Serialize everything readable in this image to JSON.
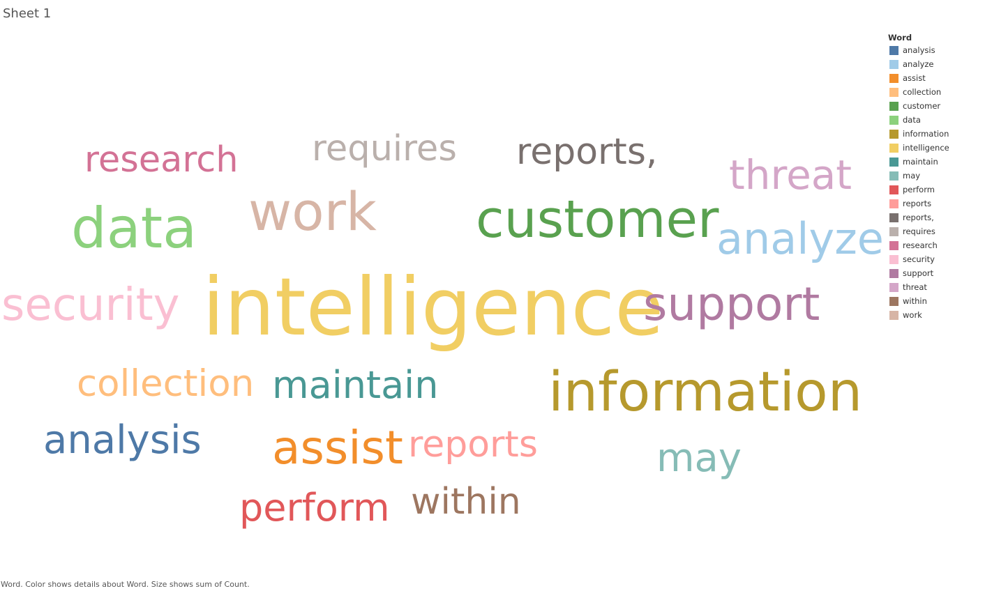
{
  "sheet": {
    "title": "Sheet 1",
    "caption": "Word.  Color shows details about Word.  Size shows sum of Count."
  },
  "chart_data": {
    "type": "word_cloud",
    "encoding": {
      "color": "Word",
      "size": "sum of Count"
    },
    "legend": {
      "title": "Word",
      "placement": "right",
      "items": [
        {
          "label": "analysis",
          "color": "#4e79a7"
        },
        {
          "label": "analyze",
          "color": "#a0cbe8"
        },
        {
          "label": "assist",
          "color": "#f28e2b"
        },
        {
          "label": "collection",
          "color": "#ffbe7d"
        },
        {
          "label": "customer",
          "color": "#59a14f"
        },
        {
          "label": "data",
          "color": "#8cd17d"
        },
        {
          "label": "information",
          "color": "#b6992d"
        },
        {
          "label": "intelligence",
          "color": "#f1ce63"
        },
        {
          "label": "maintain",
          "color": "#499894"
        },
        {
          "label": "may",
          "color": "#86bcb6"
        },
        {
          "label": "perform",
          "color": "#e15759"
        },
        {
          "label": "reports",
          "color": "#ff9d9a"
        },
        {
          "label": "reports,",
          "color": "#79706e"
        },
        {
          "label": "requires",
          "color": "#bab0ac"
        },
        {
          "label": "research",
          "color": "#d37295"
        },
        {
          "label": "security",
          "color": "#fabfd2"
        },
        {
          "label": "support",
          "color": "#b07aa1"
        },
        {
          "label": "threat",
          "color": "#d4a6c8"
        },
        {
          "label": "within",
          "color": "#9d7660"
        },
        {
          "label": "work",
          "color": "#d7b5a6"
        }
      ]
    },
    "words": [
      {
        "word": "intelligence",
        "color": "#f1ce63",
        "size_rank": 1
      },
      {
        "word": "information",
        "color": "#b6992d",
        "size_rank": 2
      },
      {
        "word": "customer",
        "color": "#59a14f",
        "size_rank": 3
      },
      {
        "word": "data",
        "color": "#8cd17d",
        "size_rank": 3
      },
      {
        "word": "work",
        "color": "#d7b5a6",
        "size_rank": 3
      },
      {
        "word": "support",
        "color": "#b07aa1",
        "size_rank": 4
      },
      {
        "word": "security",
        "color": "#fabfd2",
        "size_rank": 4
      },
      {
        "word": "analyze",
        "color": "#a0cbe8",
        "size_rank": 5
      },
      {
        "word": "assist",
        "color": "#f28e2b",
        "size_rank": 5
      },
      {
        "word": "analysis",
        "color": "#4e79a7",
        "size_rank": 6
      },
      {
        "word": "maintain",
        "color": "#499894",
        "size_rank": 6
      },
      {
        "word": "threat",
        "color": "#d4a6c8",
        "size_rank": 6
      },
      {
        "word": "collection",
        "color": "#ffbe7d",
        "size_rank": 6
      },
      {
        "word": "perform",
        "color": "#e15759",
        "size_rank": 6
      },
      {
        "word": "may",
        "color": "#86bcb6",
        "size_rank": 6
      },
      {
        "word": "reports",
        "color": "#ff9d9a",
        "size_rank": 6
      },
      {
        "word": "research",
        "color": "#d37295",
        "size_rank": 7
      },
      {
        "word": "reports,",
        "color": "#79706e",
        "size_rank": 7
      },
      {
        "word": "requires",
        "color": "#bab0ac",
        "size_rank": 7
      },
      {
        "word": "within",
        "color": "#9d7660",
        "size_rank": 7
      }
    ]
  }
}
